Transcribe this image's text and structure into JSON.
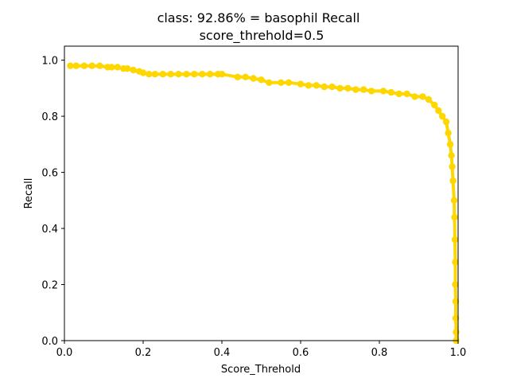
{
  "chart_data": {
    "type": "line",
    "title": "class: 92.86% = basophil Recall",
    "subtitle": "score_threhold=0.5",
    "xlabel": "Score_Threhold",
    "ylabel": "Recall",
    "xlim": [
      0.0,
      1.0
    ],
    "ylim": [
      0.0,
      1.05
    ],
    "xticks": [
      "0.0",
      "0.2",
      "0.4",
      "0.6",
      "0.8",
      "1.0"
    ],
    "yticks": [
      "0.0",
      "0.2",
      "0.4",
      "0.6",
      "0.8",
      "1.0"
    ],
    "grid": false,
    "color": "#ffd700",
    "series": [
      {
        "x": [
          0.015,
          0.03,
          0.05,
          0.07,
          0.09,
          0.11,
          0.12,
          0.135,
          0.15,
          0.16,
          0.175,
          0.19,
          0.2,
          0.215,
          0.23,
          0.25,
          0.27,
          0.29,
          0.31,
          0.33,
          0.35,
          0.37,
          0.39,
          0.4,
          0.44,
          0.46,
          0.48,
          0.5,
          0.52,
          0.55,
          0.57,
          0.6,
          0.62,
          0.64,
          0.66,
          0.68,
          0.7,
          0.72,
          0.74,
          0.76,
          0.78,
          0.81,
          0.83,
          0.85,
          0.87,
          0.89,
          0.91,
          0.925,
          0.94,
          0.95,
          0.96,
          0.97,
          0.975,
          0.98,
          0.983,
          0.985,
          0.987,
          0.99,
          0.991,
          0.992,
          0.993,
          0.993,
          0.994,
          0.994,
          0.995,
          0.995
        ],
        "y": [
          0.98,
          0.98,
          0.98,
          0.98,
          0.98,
          0.975,
          0.975,
          0.975,
          0.97,
          0.97,
          0.965,
          0.96,
          0.955,
          0.95,
          0.95,
          0.95,
          0.95,
          0.95,
          0.95,
          0.95,
          0.95,
          0.95,
          0.95,
          0.95,
          0.94,
          0.94,
          0.935,
          0.93,
          0.92,
          0.92,
          0.92,
          0.915,
          0.91,
          0.91,
          0.905,
          0.905,
          0.9,
          0.9,
          0.895,
          0.895,
          0.89,
          0.89,
          0.885,
          0.88,
          0.88,
          0.87,
          0.87,
          0.86,
          0.84,
          0.82,
          0.8,
          0.78,
          0.74,
          0.7,
          0.66,
          0.62,
          0.57,
          0.5,
          0.44,
          0.36,
          0.28,
          0.2,
          0.14,
          0.08,
          0.03,
          0.0
        ]
      }
    ]
  }
}
